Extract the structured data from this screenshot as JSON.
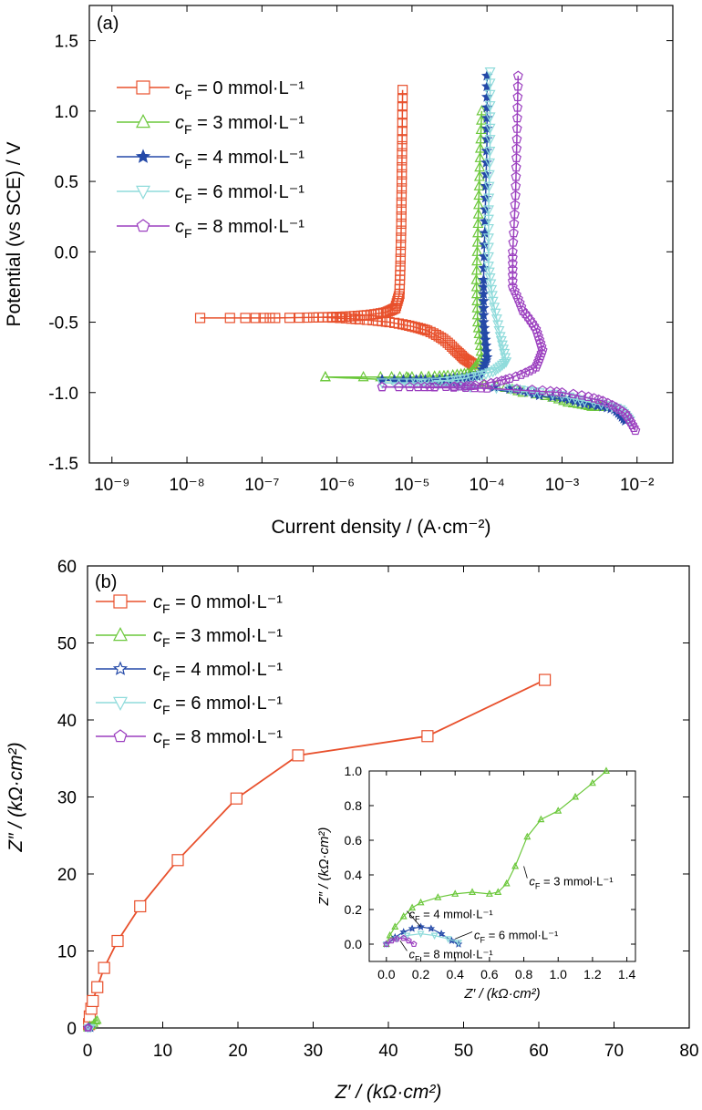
{
  "colors": {
    "c0": "#e8502c",
    "c3": "#6cc83c",
    "c4": "#2449a8",
    "c6": "#8fdbdb",
    "c8": "#9b3fbf"
  },
  "chart_data": [
    {
      "type": "line",
      "panel_label": "(a)",
      "xlabel": "Current density / (A·cm⁻²)",
      "ylabel": "Potential (vs SCE) / V",
      "xscale": "log",
      "xlim": [
        5e-10,
        0.03
      ],
      "ylim": [
        -1.5,
        1.75
      ],
      "x_ticks": [
        "10⁻⁹",
        "10⁻⁸",
        "10⁻⁷",
        "10⁻⁶",
        "10⁻⁵",
        "10⁻⁴",
        "10⁻³",
        "10⁻²"
      ],
      "x_tick_values": [
        1e-09,
        1e-08,
        1e-07,
        1e-06,
        1e-05,
        0.0001,
        0.001,
        0.01
      ],
      "y_ticks": [
        -1.5,
        -1.0,
        -0.5,
        0.0,
        0.5,
        1.0,
        1.5
      ],
      "y_tick_labels": [
        "-1.5",
        "-1.0",
        "-0.5",
        "0.0",
        "0.5",
        "1.0",
        "1.5"
      ],
      "legend_position": "top-left",
      "series": [
        {
          "name": "cF = 0 mmol·L⁻¹",
          "color_key": "c0",
          "marker": "square",
          "points": [
            [
              1.5e-08,
              -0.47
            ],
            [
              1.5e-07,
              -0.47
            ],
            [
              6.5e-07,
              -0.465
            ],
            [
              1.3e-06,
              -0.46
            ],
            [
              2.5e-06,
              -0.45
            ],
            [
              4.5e-06,
              -0.43
            ],
            [
              6e-06,
              -0.4
            ],
            [
              6.8e-06,
              -0.3
            ],
            [
              7e-06,
              -0.1
            ],
            [
              7.2e-06,
              0.2
            ],
            [
              7.3e-06,
              0.5
            ],
            [
              7.4e-06,
              0.8
            ],
            [
              7.5e-06,
              1.15
            ]
          ],
          "cathodic": [
            [
              6.5e-07,
              -0.465
            ],
            [
              2e-06,
              -0.48
            ],
            [
              5e-06,
              -0.5
            ],
            [
              1e-05,
              -0.53
            ],
            [
              1.6e-05,
              -0.56
            ],
            [
              2.6e-05,
              -0.62
            ],
            [
              3.8e-05,
              -0.7
            ],
            [
              5e-05,
              -0.76
            ],
            [
              6.5e-05,
              -0.8
            ]
          ]
        },
        {
          "name": "cF = 3 mmol·L⁻¹",
          "color_key": "c3",
          "marker": "triangle-up",
          "points": [
            [
              7e-07,
              -0.89
            ],
            [
              1e-05,
              -0.89
            ],
            [
              3e-05,
              -0.88
            ],
            [
              6e-05,
              -0.86
            ],
            [
              8.5e-05,
              -0.75
            ],
            [
              7.5e-05,
              -0.5
            ],
            [
              7.2e-05,
              -0.2
            ],
            [
              7.6e-05,
              0.2
            ],
            [
              8e-05,
              0.6
            ],
            [
              8.5e-05,
              1.0
            ]
          ],
          "cathodic": [
            [
              7e-07,
              -0.89
            ],
            [
              5e-05,
              -0.93
            ],
            [
              0.0003,
              -1.0
            ],
            [
              0.0012,
              -1.07
            ],
            [
              0.0025,
              -1.1
            ],
            [
              0.004,
              -1.1
            ]
          ]
        },
        {
          "name": "cF = 4 mmol·L⁻¹",
          "color_key": "c4",
          "marker": "star",
          "points": [
            [
              4e-06,
              -0.91
            ],
            [
              1.5e-05,
              -0.91
            ],
            [
              4e-05,
              -0.9
            ],
            [
              8e-05,
              -0.88
            ],
            [
              0.0001,
              -0.75
            ],
            [
              9e-05,
              -0.5
            ],
            [
              9e-05,
              -0.2
            ],
            [
              9.5e-05,
              0.3
            ],
            [
              0.0001,
              0.8
            ],
            [
              0.0001,
              1.25
            ]
          ],
          "cathodic": [
            [
              4e-06,
              -0.91
            ],
            [
              5e-05,
              -0.95
            ],
            [
              0.0005,
              -1.02
            ],
            [
              0.002,
              -1.08
            ],
            [
              0.005,
              -1.12
            ],
            [
              0.007,
              -1.2
            ]
          ]
        },
        {
          "name": "cF = 6 mmol·L⁻¹",
          "color_key": "c6",
          "marker": "triangle-down",
          "points": [
            [
              4e-06,
              -0.93
            ],
            [
              1.5e-05,
              -0.93
            ],
            [
              5e-05,
              -0.9
            ],
            [
              0.00012,
              -0.85
            ],
            [
              0.00018,
              -0.78
            ],
            [
              0.00015,
              -0.6
            ],
            [
              0.00012,
              -0.35
            ],
            [
              0.000105,
              -0.1
            ],
            [
              0.000105,
              0.3
            ],
            [
              0.00011,
              0.8
            ],
            [
              0.00011,
              1.28
            ]
          ],
          "cathodic": [
            [
              4e-06,
              -0.93
            ],
            [
              6e-05,
              -0.96
            ],
            [
              0.0005,
              -1.0
            ],
            [
              0.002,
              -1.06
            ],
            [
              0.006,
              -1.12
            ],
            [
              0.008,
              -1.2
            ]
          ]
        },
        {
          "name": "cF = 8 mmol·L⁻¹",
          "color_key": "c8",
          "marker": "pentagon",
          "points": [
            [
              4e-06,
              -0.96
            ],
            [
              2e-05,
              -0.96
            ],
            [
              7e-05,
              -0.95
            ],
            [
              0.0002,
              -0.9
            ],
            [
              0.00045,
              -0.82
            ],
            [
              0.00055,
              -0.7
            ],
            [
              0.00045,
              -0.55
            ],
            [
              0.0003,
              -0.42
            ],
            [
              0.00022,
              -0.25
            ],
            [
              0.00022,
              0.0
            ],
            [
              0.00024,
              0.4
            ],
            [
              0.00025,
              0.8
            ],
            [
              0.00026,
              1.25
            ]
          ],
          "cathodic": [
            [
              4e-06,
              -0.96
            ],
            [
              0.0001,
              -0.97
            ],
            [
              0.001,
              -1.0
            ],
            [
              0.0035,
              -1.06
            ],
            [
              0.007,
              -1.15
            ],
            [
              0.0095,
              -1.27
            ]
          ]
        }
      ]
    },
    {
      "type": "line",
      "panel_label": "(b)",
      "xlabel": "Z′ / (kΩ·cm²)",
      "ylabel": "Z″ / (kΩ·cm²)",
      "xlim": [
        0,
        80
      ],
      "ylim": [
        0,
        60
      ],
      "x_ticks": [
        0,
        10,
        20,
        30,
        40,
        50,
        60,
        70,
        80
      ],
      "y_ticks": [
        0,
        10,
        20,
        30,
        40,
        50,
        60
      ],
      "legend_position": "top-left",
      "series": [
        {
          "name": "cF = 0 mmol·L⁻¹",
          "color_key": "c0",
          "marker": "square",
          "points": [
            [
              0.2,
              0.5
            ],
            [
              0.3,
              1.5
            ],
            [
              0.5,
              2.5
            ],
            [
              0.7,
              3.5
            ],
            [
              1.3,
              5.3
            ],
            [
              2.2,
              7.8
            ],
            [
              4.0,
              11.3
            ],
            [
              7.0,
              15.8
            ],
            [
              12.0,
              21.8
            ],
            [
              19.8,
              29.8
            ],
            [
              28.0,
              35.4
            ],
            [
              45.2,
              37.9
            ],
            [
              60.8,
              45.2
            ]
          ]
        },
        {
          "name": "cF = 3 mmol·L⁻¹",
          "color_key": "c3",
          "marker": "triangle-up",
          "points": [
            [
              0.0,
              0.0
            ],
            [
              0.3,
              0.3
            ],
            [
              0.6,
              0.3
            ],
            [
              0.85,
              0.6
            ],
            [
              1.1,
              0.9
            ],
            [
              1.28,
              1.0
            ]
          ]
        },
        {
          "name": "cF = 4 mmol·L⁻¹",
          "color_key": "c4",
          "marker": "star",
          "points": [
            [
              0.0,
              0.0
            ],
            [
              0.1,
              0.05
            ],
            [
              0.2,
              0.08
            ],
            [
              0.3,
              0.05
            ],
            [
              0.4,
              0.0
            ]
          ]
        },
        {
          "name": "cF = 6 mmol·L⁻¹",
          "color_key": "c6",
          "marker": "triangle-down",
          "points": [
            [
              0.0,
              0.0
            ],
            [
              0.15,
              0.05
            ],
            [
              0.3,
              0.06
            ],
            [
              0.45,
              0.02
            ]
          ]
        },
        {
          "name": "cF = 8 mmol·L⁻¹",
          "color_key": "c8",
          "marker": "pentagon",
          "points": [
            [
              0.0,
              0.0
            ],
            [
              0.05,
              0.03
            ],
            [
              0.1,
              0.04
            ],
            [
              0.15,
              0.01
            ]
          ]
        }
      ],
      "inset": {
        "xlabel": "Z′ / (kΩ·cm²)",
        "ylabel": "Z″ / (kΩ·cm²)",
        "xlim": [
          -0.1,
          1.45
        ],
        "ylim": [
          -0.1,
          1.0
        ],
        "x_ticks": [
          0.0,
          0.2,
          0.4,
          0.6,
          0.8,
          1.0,
          1.2,
          1.4
        ],
        "x_tick_labels": [
          "0.0",
          "0.2",
          "0.4",
          "0.6",
          "0.8",
          "1.0",
          "1.2",
          "1.4"
        ],
        "y_ticks": [
          0.0,
          0.2,
          0.4,
          0.6,
          0.8,
          1.0
        ],
        "y_tick_labels": [
          "0.0",
          "0.2",
          "0.4",
          "0.6",
          "0.8",
          "1.0"
        ],
        "series": [
          {
            "color_key": "c3",
            "marker": "triangle-up",
            "points": [
              [
                0.0,
                0.0
              ],
              [
                0.02,
                0.05
              ],
              [
                0.05,
                0.1
              ],
              [
                0.1,
                0.16
              ],
              [
                0.15,
                0.21
              ],
              [
                0.2,
                0.24
              ],
              [
                0.3,
                0.27
              ],
              [
                0.4,
                0.29
              ],
              [
                0.5,
                0.3
              ],
              [
                0.6,
                0.29
              ],
              [
                0.65,
                0.3
              ],
              [
                0.7,
                0.35
              ],
              [
                0.75,
                0.45
              ],
              [
                0.82,
                0.62
              ],
              [
                0.9,
                0.72
              ],
              [
                1.0,
                0.77
              ],
              [
                1.1,
                0.85
              ],
              [
                1.2,
                0.93
              ],
              [
                1.28,
                1.0
              ]
            ]
          },
          {
            "color_key": "c4",
            "marker": "star",
            "points": [
              [
                0.0,
                0.0
              ],
              [
                0.05,
                0.04
              ],
              [
                0.1,
                0.07
              ],
              [
                0.15,
                0.09
              ],
              [
                0.2,
                0.1
              ],
              [
                0.26,
                0.09
              ],
              [
                0.32,
                0.06
              ],
              [
                0.38,
                0.02
              ],
              [
                0.42,
                0.0
              ]
            ]
          },
          {
            "color_key": "c6",
            "marker": "triangle-down",
            "points": [
              [
                0.0,
                0.0
              ],
              [
                0.06,
                0.03
              ],
              [
                0.12,
                0.05
              ],
              [
                0.2,
                0.06
              ],
              [
                0.28,
                0.05
              ],
              [
                0.36,
                0.03
              ],
              [
                0.42,
                0.01
              ]
            ]
          },
          {
            "color_key": "c8",
            "marker": "pentagon",
            "points": [
              [
                0.0,
                0.0
              ],
              [
                0.03,
                0.02
              ],
              [
                0.06,
                0.03
              ],
              [
                0.1,
                0.035
              ],
              [
                0.13,
                0.02
              ],
              [
                0.16,
                0.0
              ]
            ]
          }
        ],
        "annotations": [
          {
            "text": "cF = 3 mmol·L⁻¹",
            "at": [
              0.82,
              0.36
            ],
            "arrow_to": [
              0.8,
              0.45
            ]
          },
          {
            "text": "cF = 4 mmol·L⁻¹",
            "at": [
              0.12,
              0.17
            ],
            "arrow_to": [
              0.2,
              0.1
            ]
          },
          {
            "text": "cF = 6 mmol·L⁻¹",
            "at": [
              0.5,
              0.05
            ],
            "arrow_to": [
              0.4,
              0.03
            ]
          },
          {
            "text": "cF = 8 mmol·L⁻¹",
            "at": [
              0.12,
              -0.06
            ],
            "arrow_to": [
              0.08,
              0.02
            ]
          }
        ]
      }
    }
  ]
}
